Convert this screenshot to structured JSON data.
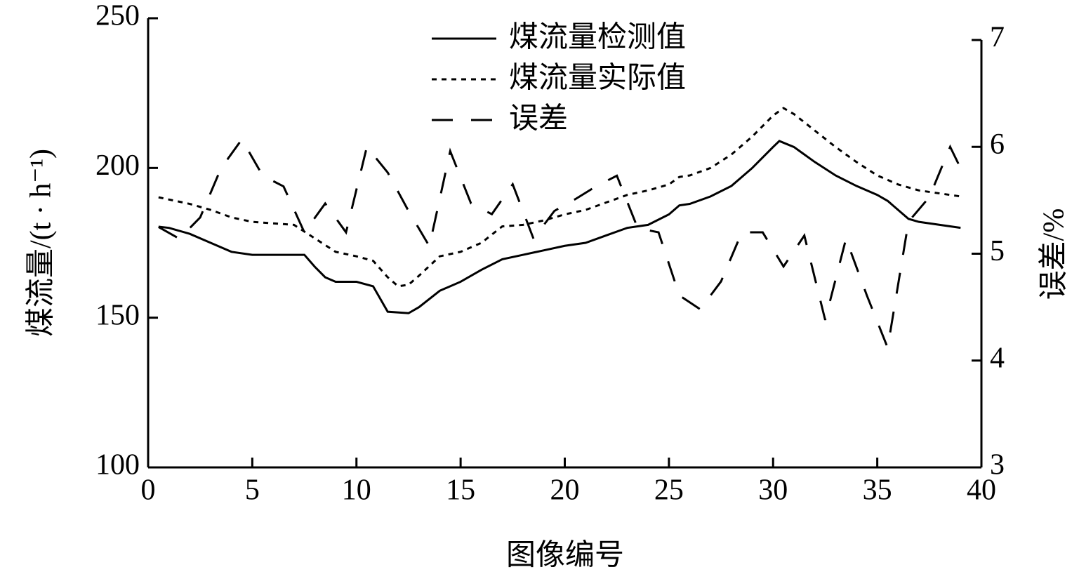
{
  "chart_data": {
    "type": "line",
    "x_label": "图像编号",
    "y_label": "煤流量/(t · h⁻¹)",
    "y2_label": "误差/%",
    "xlim": [
      0,
      40
    ],
    "xticks": [
      0,
      5,
      10,
      15,
      20,
      25,
      30,
      35,
      40
    ],
    "ylim": [
      100,
      250
    ],
    "yticks": [
      100,
      150,
      200,
      250
    ],
    "y2lim": [
      3,
      7
    ],
    "y2ticks": [
      3,
      4,
      5,
      6,
      7
    ],
    "legend": "upper center",
    "series": [
      {
        "name": "煤流量检测值",
        "color": "#000000",
        "style": "solid",
        "x": [
          0.5,
          1,
          2,
          3,
          4,
          5,
          6,
          7,
          7.5,
          8,
          8.5,
          9,
          10,
          10.8,
          11.5,
          12.5,
          13,
          14,
          15,
          16,
          17,
          18,
          19,
          20,
          21,
          22,
          23,
          24,
          25,
          25.5,
          26,
          27,
          28,
          29,
          30,
          30.3,
          31,
          32,
          33,
          34,
          35,
          35.5,
          36.5,
          37,
          38,
          39
        ],
        "values": [
          180.4,
          180,
          178,
          175,
          172,
          171,
          171,
          171,
          171,
          167,
          163.5,
          162,
          162,
          160.5,
          152,
          151.5,
          153.5,
          159,
          162,
          166,
          169.5,
          171,
          172.5,
          174,
          175,
          177.5,
          180,
          181,
          184.5,
          187.5,
          188,
          190.5,
          194,
          200,
          207,
          209,
          207,
          202,
          197.5,
          194,
          191,
          189,
          183,
          182,
          181,
          180
        ]
      },
      {
        "name": "煤流量实际值",
        "color": "#000000",
        "style": "dotted",
        "x": [
          0.5,
          2,
          3,
          4,
          5,
          6,
          7,
          8,
          9,
          10,
          10.8,
          11.5,
          12,
          12.5,
          13,
          14,
          15,
          16,
          17,
          18,
          19,
          20,
          21,
          22,
          23,
          24,
          25,
          25.5,
          26,
          27,
          28,
          29,
          30,
          30.5,
          31,
          32,
          33,
          34,
          35,
          36,
          37,
          38,
          39
        ],
        "values": [
          190.2,
          188,
          186,
          183.5,
          182,
          181.5,
          181,
          176.5,
          172,
          170.5,
          169,
          163.5,
          160.5,
          161,
          164,
          170.5,
          172,
          175,
          180.5,
          181,
          182.5,
          184.5,
          186,
          188.5,
          191,
          192.5,
          194.5,
          197,
          197.5,
          200,
          204.5,
          210.5,
          217.5,
          220,
          218,
          212.5,
          207,
          202,
          197.5,
          194.5,
          192.5,
          191.5,
          190.5
        ]
      },
      {
        "name": "误差",
        "color": "#000000",
        "style": "dashed",
        "axis": "y2",
        "x": [
          0.5,
          1.5,
          2.5,
          3.5,
          4.5,
          5.5,
          6.5,
          7.5,
          8.5,
          9.5,
          10.5,
          11.5,
          12.5,
          13.5,
          14.5,
          15.5,
          16.5,
          17.5,
          18.5,
          19.5,
          20.5,
          21.5,
          22.5,
          23.5,
          24.5,
          25.5,
          26.5,
          27.5,
          28.5,
          29.5,
          30.5,
          31.5,
          32.5,
          33.5,
          34.5,
          35.5,
          36.5,
          37.5,
          38.5,
          39
        ],
        "values": [
          5.25,
          5.14,
          5.34,
          5.8,
          6.07,
          5.73,
          5.63,
          5.2,
          5.47,
          5.2,
          6.0,
          5.76,
          5.4,
          5.07,
          5.96,
          5.47,
          5.37,
          5.65,
          5.14,
          5.4,
          5.51,
          5.63,
          5.73,
          5.24,
          5.2,
          4.61,
          4.48,
          4.74,
          5.2,
          5.2,
          4.88,
          5.17,
          4.38,
          5.14,
          4.61,
          4.12,
          5.3,
          5.53,
          6.0,
          5.8
        ]
      }
    ]
  }
}
